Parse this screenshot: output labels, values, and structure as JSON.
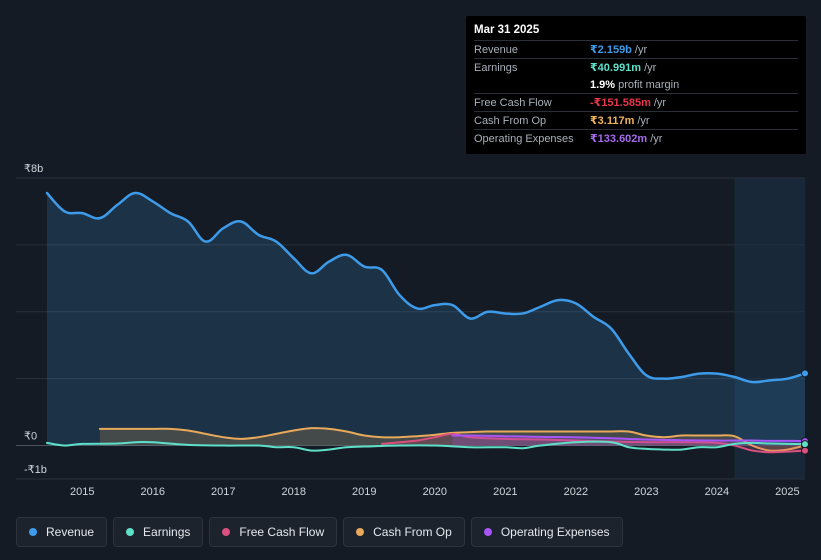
{
  "tooltip": {
    "date": "Mar 31 2025",
    "rows": [
      {
        "label": "Revenue",
        "value": "₹2.159b",
        "unit": "/yr",
        "color": "#3d9be9"
      },
      {
        "label": "Earnings",
        "value": "₹40.991m",
        "unit": "/yr",
        "color": "#5ee0c8"
      },
      {
        "label": "",
        "value": "1.9%",
        "unit": "profit margin",
        "color": "#ffffff"
      },
      {
        "label": "Free Cash Flow",
        "value": "-₹151.585m",
        "unit": "/yr",
        "color": "#e8384a"
      },
      {
        "label": "Cash From Op",
        "value": "₹3.117m",
        "unit": "/yr",
        "color": "#f0b35a"
      },
      {
        "label": "Operating Expenses",
        "value": "₹133.602m",
        "unit": "/yr",
        "color": "#a46be8"
      }
    ]
  },
  "legend": [
    {
      "label": "Revenue",
      "color": "#3d9be9"
    },
    {
      "label": "Earnings",
      "color": "#5ee0c8"
    },
    {
      "label": "Free Cash Flow",
      "color": "#d94f7e"
    },
    {
      "label": "Cash From Op",
      "color": "#e8a95a"
    },
    {
      "label": "Operating Expenses",
      "color": "#a855f7"
    }
  ],
  "chart_data": {
    "type": "line",
    "title": "",
    "xlabel": "",
    "ylabel": "",
    "y_unit": "₹ billions",
    "ylim": [
      -1,
      8
    ],
    "xlim": [
      2014.5,
      2025.25
    ],
    "y_tick_labels": [
      {
        "value": 8,
        "label": "₹8b"
      },
      {
        "value": 0,
        "label": "₹0"
      },
      {
        "value": -1,
        "label": "-₹1b"
      }
    ],
    "x_ticks": [
      "2015",
      "2016",
      "2017",
      "2018",
      "2019",
      "2020",
      "2021",
      "2022",
      "2023",
      "2024",
      "2025"
    ],
    "x_tick_values": [
      2015,
      2016,
      2017,
      2018,
      2019,
      2020,
      2021,
      2022,
      2023,
      2024,
      2025
    ],
    "gridline_values": [
      8,
      6,
      4,
      2,
      0,
      -1
    ],
    "highlight_range": [
      2024.25,
      2025.25
    ],
    "series": [
      {
        "name": "Revenue",
        "color": "#3d9be9",
        "fill": true,
        "x": [
          2014.5,
          2014.75,
          2015.0,
          2015.25,
          2015.5,
          2015.75,
          2016.0,
          2016.25,
          2016.5,
          2016.75,
          2017.0,
          2017.25,
          2017.5,
          2017.75,
          2018.0,
          2018.25,
          2018.5,
          2018.75,
          2019.0,
          2019.25,
          2019.5,
          2019.75,
          2020.0,
          2020.25,
          2020.5,
          2020.75,
          2021.0,
          2021.25,
          2021.5,
          2021.75,
          2022.0,
          2022.25,
          2022.5,
          2022.75,
          2023.0,
          2023.25,
          2023.5,
          2023.75,
          2024.0,
          2024.25,
          2024.5,
          2024.75,
          2025.0,
          2025.25
        ],
        "values": [
          7.55,
          7.0,
          6.95,
          6.8,
          7.2,
          7.55,
          7.3,
          6.95,
          6.7,
          6.1,
          6.5,
          6.7,
          6.3,
          6.1,
          5.6,
          5.15,
          5.5,
          5.7,
          5.35,
          5.25,
          4.5,
          4.1,
          4.2,
          4.2,
          3.8,
          4.0,
          3.95,
          3.95,
          4.15,
          4.35,
          4.25,
          3.85,
          3.5,
          2.75,
          2.1,
          2.0,
          2.05,
          2.15,
          2.15,
          2.05,
          1.9,
          1.95,
          2.0,
          2.159
        ]
      },
      {
        "name": "Earnings",
        "color": "#5ee0c8",
        "fill": false,
        "x": [
          2014.5,
          2014.75,
          2015.0,
          2015.5,
          2015.75,
          2016.0,
          2016.5,
          2017.0,
          2017.5,
          2017.75,
          2018.0,
          2018.25,
          2018.5,
          2018.75,
          2019.0,
          2019.5,
          2020.0,
          2020.5,
          2021.0,
          2021.25,
          2021.5,
          2022.0,
          2022.5,
          2022.75,
          2023.0,
          2023.25,
          2023.5,
          2023.75,
          2024.0,
          2024.25,
          2024.5,
          2024.75,
          2025.0,
          2025.25
        ],
        "values": [
          0.08,
          0.0,
          0.05,
          0.06,
          0.1,
          0.1,
          0.02,
          0.0,
          0.0,
          -0.05,
          -0.05,
          -0.15,
          -0.12,
          -0.05,
          -0.03,
          0.0,
          0.0,
          -0.05,
          -0.05,
          -0.08,
          0.0,
          0.1,
          0.1,
          -0.05,
          -0.1,
          -0.12,
          -0.12,
          -0.05,
          -0.05,
          0.05,
          0.08,
          0.06,
          0.05,
          0.041
        ]
      },
      {
        "name": "Free Cash Flow",
        "color": "#d94f7e",
        "fill": true,
        "x": [
          2019.25,
          2019.5,
          2019.75,
          2020.0,
          2020.25,
          2020.5,
          2021.0,
          2021.5,
          2022.0,
          2022.5,
          2023.0,
          2023.5,
          2024.0,
          2024.25,
          2024.5,
          2024.75,
          2025.0,
          2025.25
        ],
        "values": [
          0.05,
          0.1,
          0.15,
          0.25,
          0.35,
          0.25,
          0.2,
          0.18,
          0.15,
          0.12,
          0.1,
          0.1,
          0.08,
          0.0,
          -0.15,
          -0.2,
          -0.18,
          -0.152
        ]
      },
      {
        "name": "Cash From Op",
        "color": "#e8a95a",
        "fill": true,
        "x": [
          2015.25,
          2015.5,
          2016.0,
          2016.25,
          2016.5,
          2016.75,
          2017.0,
          2017.25,
          2017.5,
          2017.75,
          2018.0,
          2018.25,
          2018.5,
          2018.75,
          2019.0,
          2019.25,
          2019.5,
          2019.75,
          2020.0,
          2020.25,
          2020.5,
          2020.75,
          2021.0,
          2021.5,
          2022.0,
          2022.5,
          2022.75,
          2023.0,
          2023.25,
          2023.5,
          2023.75,
          2024.0,
          2024.25,
          2024.5,
          2024.75,
          2025.0,
          2025.25
        ],
        "values": [
          0.5,
          0.5,
          0.5,
          0.5,
          0.45,
          0.35,
          0.25,
          0.2,
          0.25,
          0.35,
          0.45,
          0.52,
          0.5,
          0.42,
          0.3,
          0.25,
          0.25,
          0.28,
          0.32,
          0.38,
          0.4,
          0.42,
          0.42,
          0.42,
          0.42,
          0.42,
          0.42,
          0.3,
          0.25,
          0.3,
          0.3,
          0.3,
          0.28,
          0.0,
          -0.15,
          -0.12,
          0.003
        ]
      },
      {
        "name": "Operating Expenses",
        "color": "#a855f7",
        "fill": true,
        "x": [
          2020.25,
          2020.5,
          2021.0,
          2021.5,
          2022.0,
          2022.5,
          2023.0,
          2023.5,
          2024.0,
          2024.25,
          2024.5,
          2024.75,
          2025.0,
          2025.25
        ],
        "values": [
          0.3,
          0.3,
          0.28,
          0.26,
          0.25,
          0.22,
          0.18,
          0.16,
          0.15,
          0.15,
          0.15,
          0.14,
          0.14,
          0.134
        ]
      }
    ]
  }
}
